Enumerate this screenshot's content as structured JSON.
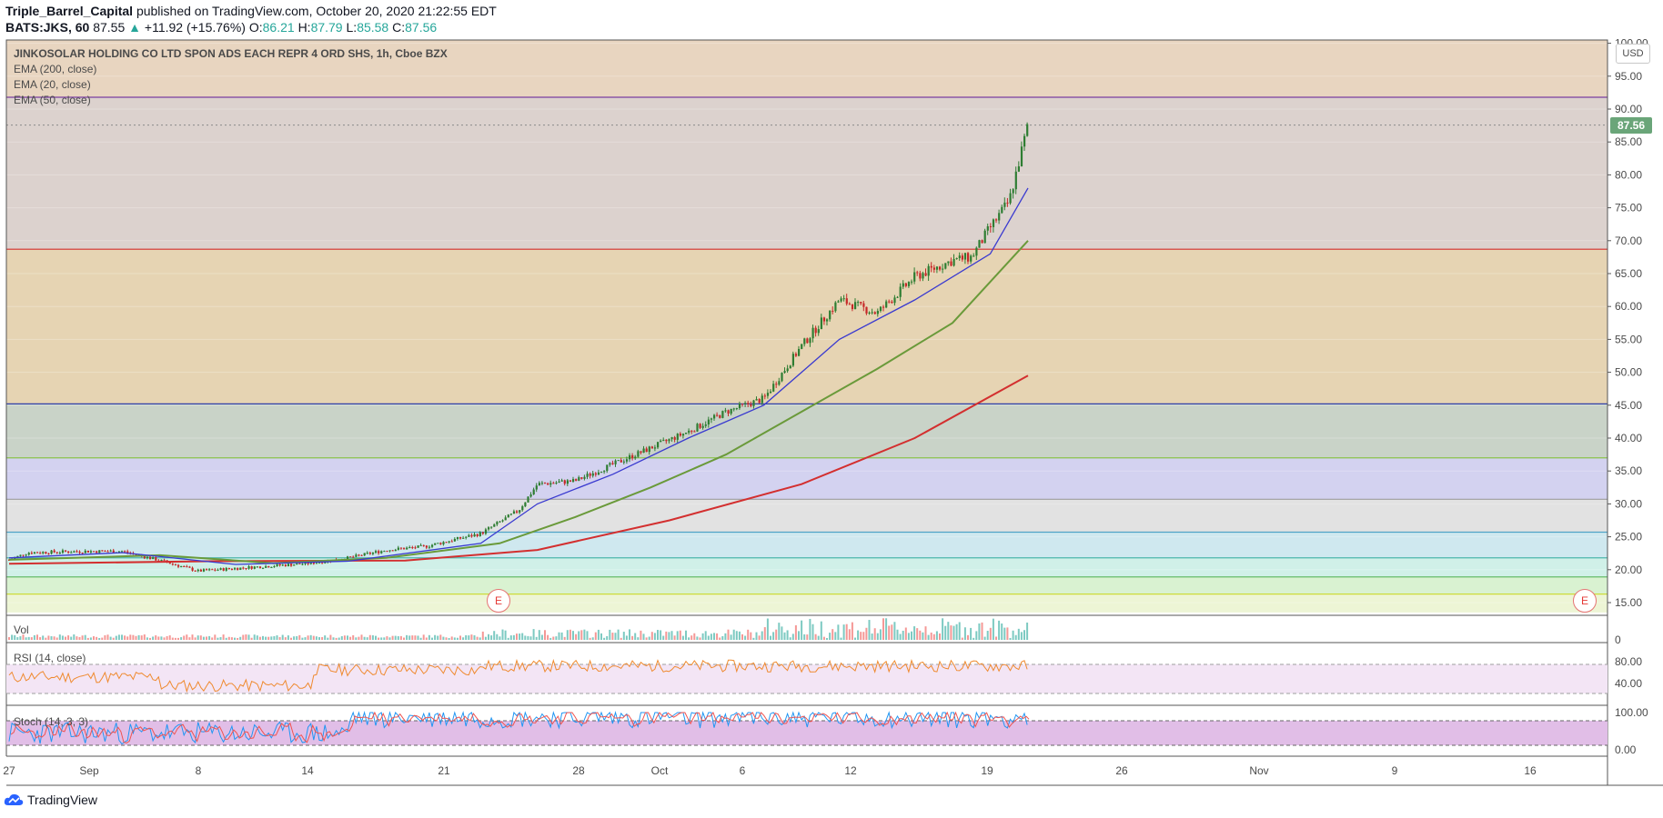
{
  "header": {
    "publisher": "Triple_Barrel_Capital",
    "published_text": "published on TradingView.com, October 20, 2020 21:22:55 EDT",
    "symbol_interval": "BATS:JKS, 60",
    "last_price": "87.55",
    "change_text": "+11.92 (+15.76%)",
    "open_label": "O:",
    "open": "86.21",
    "high_label": "H:",
    "high": "87.79",
    "low_label": "L:",
    "low": "85.58",
    "close_label": "C:",
    "close": "87.56"
  },
  "overlays": {
    "title": "JINKOSOLAR HOLDING CO LTD SPON ADS EACH REPR 4 ORD SHS, 1h, Cboe BZX",
    "ema_200": "EMA (200, close)",
    "ema_20": "EMA (20, close)",
    "ema_50": "EMA (50, close)",
    "currency": "USD",
    "last_tag": "87.56",
    "earnings_marker": "E"
  },
  "panes": {
    "vol_label": "Vol",
    "rsi_label": "RSI (14, close)",
    "stoch_label": "Stoch (14, 3, 3)"
  },
  "footer": {
    "brand": "TradingView"
  },
  "colors": {
    "ema20": "#3a3ad0",
    "ema50": "#6a9a3a",
    "ema200": "#d32f2f",
    "up_candle": "#2e7d32",
    "down_candle": "#c62828",
    "rsi_line": "#ef8a2f",
    "stoch_k": "#2196f3",
    "stoch_d": "#ef5350"
  },
  "chart_data": {
    "type": "candlestick",
    "title": "JINKOSOLAR HOLDING CO LTD SPON ADS EACH REPR 4 ORD SHS, 1h, Cboe BZX",
    "x_axis": {
      "type": "date",
      "tick_labels": [
        "27",
        "Sep",
        "8",
        "14",
        "21",
        "28",
        "Oct",
        "6",
        "12",
        "19",
        "26",
        "Nov",
        "9",
        "16"
      ]
    },
    "y_axis": {
      "price_ticks": [
        "100.00",
        "95.00",
        "90.00",
        "85.00",
        "80.00",
        "75.00",
        "70.00",
        "65.00",
        "60.00",
        "55.00",
        "50.00",
        "45.00",
        "40.00",
        "35.00",
        "30.00",
        "25.00",
        "20.00",
        "15.00"
      ],
      "ylim": [
        13.5,
        101
      ]
    },
    "horizontal_levels": [
      {
        "price": 91.8,
        "color": "#7a3fa0"
      },
      {
        "price": 68.7,
        "color": "#d32f2f"
      },
      {
        "price": 45.2,
        "color": "#2d3fa8"
      },
      {
        "price": 37.0,
        "color": "#8bc34a"
      },
      {
        "price": 30.7,
        "color": "#9e9e9e"
      },
      {
        "price": 25.7,
        "color": "#4fa3c7"
      },
      {
        "price": 21.8,
        "color": "#4db6ac"
      },
      {
        "price": 18.9,
        "color": "#66bb6a"
      },
      {
        "price": 16.3,
        "color": "#cddc39"
      }
    ],
    "bands": [
      {
        "from": 91.8,
        "to": 101,
        "color": "#e8d5c0"
      },
      {
        "from": 68.7,
        "to": 91.8,
        "color": "#dcd2ce"
      },
      {
        "from": 45.2,
        "to": 68.7,
        "color": "#e6d4b3"
      },
      {
        "from": 37.0,
        "to": 45.2,
        "color": "#c9d3c8"
      },
      {
        "from": 30.7,
        "to": 37.0,
        "color": "#d3d2f0"
      },
      {
        "from": 25.7,
        "to": 30.7,
        "color": "#e2e2e2"
      },
      {
        "from": 21.8,
        "to": 25.7,
        "color": "#cfe8ef"
      },
      {
        "from": 18.9,
        "to": 21.8,
        "color": "#d0f0e8"
      },
      {
        "from": 16.3,
        "to": 18.9,
        "color": "#d9f2d1"
      },
      {
        "from": 13.5,
        "to": 16.3,
        "color": "#edf5d5"
      }
    ],
    "price_path": [
      {
        "d": "Aug 27",
        "p": 21.5
      },
      {
        "d": "Aug 28",
        "p": 22.6
      },
      {
        "d": "Aug 31",
        "p": 22.8
      },
      {
        "d": "Sep 2",
        "p": 22.8
      },
      {
        "d": "Sep 4",
        "p": 21.4
      },
      {
        "d": "Sep 6",
        "p": 19.8
      },
      {
        "d": "Sep 8",
        "p": 20.2
      },
      {
        "d": "Sep 10",
        "p": 20.6
      },
      {
        "d": "Sep 12",
        "p": 21.0
      },
      {
        "d": "Sep 14",
        "p": 21.8
      },
      {
        "d": "Sep 16",
        "p": 23.0
      },
      {
        "d": "Sep 18",
        "p": 23.5
      },
      {
        "d": "Sep 21",
        "p": 25.5
      },
      {
        "d": "Sep 23",
        "p": 29.0
      },
      {
        "d": "Sep 24",
        "p": 33.0
      },
      {
        "d": "Sep 26",
        "p": 33.5
      },
      {
        "d": "Sep 28",
        "p": 36.0
      },
      {
        "d": "Sep 30",
        "p": 38.5
      },
      {
        "d": "Oct 2",
        "p": 41.0
      },
      {
        "d": "Oct 4",
        "p": 44.0
      },
      {
        "d": "Oct 6",
        "p": 46.0
      },
      {
        "d": "Oct 8",
        "p": 54.0
      },
      {
        "d": "Oct 10",
        "p": 61.0
      },
      {
        "d": "Oct 12",
        "p": 59.0
      },
      {
        "d": "Oct 14",
        "p": 64.5
      },
      {
        "d": "Oct 16",
        "p": 67.0
      },
      {
        "d": "Oct 17",
        "p": 67.5
      },
      {
        "d": "Oct 18",
        "p": 72.0
      },
      {
        "d": "Oct 19",
        "p": 76.0
      },
      {
        "d": "Oct 20",
        "p": 87.6
      }
    ],
    "ema_20": [
      {
        "d": "Aug 27",
        "v": 21.8
      },
      {
        "d": "Sep 2",
        "v": 22.6
      },
      {
        "d": "Sep 8",
        "v": 20.8
      },
      {
        "d": "Sep 14",
        "v": 21.3
      },
      {
        "d": "Sep 21",
        "v": 24.0
      },
      {
        "d": "Sep 24",
        "v": 30.0
      },
      {
        "d": "Sep 28",
        "v": 34.5
      },
      {
        "d": "Oct 2",
        "v": 40.0
      },
      {
        "d": "Oct 6",
        "v": 45.0
      },
      {
        "d": "Oct 10",
        "v": 55.0
      },
      {
        "d": "Oct 14",
        "v": 61.0
      },
      {
        "d": "Oct 18",
        "v": 68.0
      },
      {
        "d": "Oct 20",
        "v": 78.0
      }
    ],
    "ema_50": [
      {
        "d": "Aug 27",
        "v": 21.5
      },
      {
        "d": "Sep 4",
        "v": 22.2
      },
      {
        "d": "Sep 10",
        "v": 21.0
      },
      {
        "d": "Sep 16",
        "v": 21.8
      },
      {
        "d": "Sep 22",
        "v": 24.0
      },
      {
        "d": "Sep 26",
        "v": 28.0
      },
      {
        "d": "Sep 30",
        "v": 32.5
      },
      {
        "d": "Oct 4",
        "v": 37.5
      },
      {
        "d": "Oct 8",
        "v": 44.0
      },
      {
        "d": "Oct 12",
        "v": 50.5
      },
      {
        "d": "Oct 16",
        "v": 57.5
      },
      {
        "d": "Oct 20",
        "v": 70.0
      }
    ],
    "ema_200": [
      {
        "d": "Aug 27",
        "v": 20.9
      },
      {
        "d": "Sep 7",
        "v": 21.3
      },
      {
        "d": "Sep 17",
        "v": 21.4
      },
      {
        "d": "Sep 24",
        "v": 23.0
      },
      {
        "d": "Oct 1",
        "v": 27.5
      },
      {
        "d": "Oct 8",
        "v": 33.0
      },
      {
        "d": "Oct 14",
        "v": 40.0
      },
      {
        "d": "Oct 20",
        "v": 49.5
      }
    ],
    "volume": {
      "y_ticks": [
        "0"
      ]
    },
    "rsi": {
      "y_ticks": [
        "80.00",
        "40.00"
      ]
    },
    "stoch": {
      "y_ticks": [
        "100.00",
        "0.00"
      ]
    },
    "earnings_markers": [
      "Sep 23",
      "Nov 19"
    ]
  }
}
